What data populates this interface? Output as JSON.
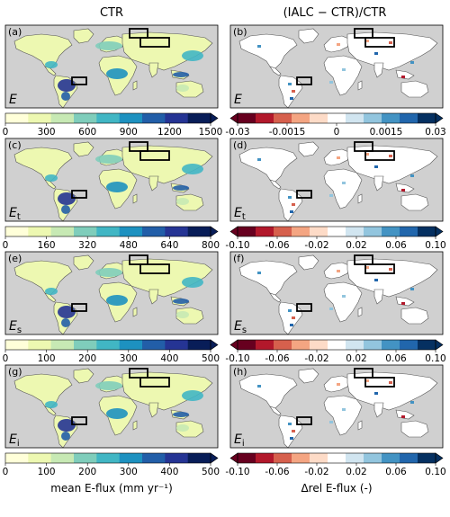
{
  "column_titles": {
    "left": "CTR",
    "right": "(IALC − CTR)/CTR"
  },
  "colors": {
    "ocean": "#d0d0d0",
    "box_stroke": "#000000",
    "mean_colormap": [
      "#ffffd9",
      "#edf8b1",
      "#c7e9b4",
      "#7fcdbb",
      "#41b6c4",
      "#1d91c0",
      "#225ea8",
      "#253494",
      "#081d58"
    ],
    "diff_colormap": [
      "#67001f",
      "#b2182b",
      "#d6604d",
      "#f4a582",
      "#fddbc7",
      "#ffffff",
      "#d1e5f0",
      "#92c5de",
      "#4393c3",
      "#2166ac",
      "#053061"
    ]
  },
  "chart_data": [
    {
      "type": "heatmap",
      "panel": "(a)",
      "variable": "E",
      "subscript": "",
      "colorbar": {
        "ticks": [
          "0",
          "300",
          "600",
          "900",
          "1200",
          "1500"
        ],
        "range": [
          0,
          1500
        ],
        "extend": "max",
        "colormap": "YlGnBu"
      }
    },
    {
      "type": "heatmap",
      "panel": "(b)",
      "variable": "E",
      "subscript": "",
      "colorbar": {
        "ticks": [
          "-0.03",
          "-0.0015",
          "0",
          "0.0015",
          "0.03"
        ],
        "range": [
          -0.03,
          0.03
        ],
        "extend": "both",
        "colormap": "RdBu"
      }
    },
    {
      "type": "heatmap",
      "panel": "(c)",
      "variable": "E",
      "subscript": "t",
      "colorbar": {
        "ticks": [
          "0",
          "160",
          "320",
          "480",
          "640",
          "800"
        ],
        "range": [
          0,
          800
        ],
        "extend": "max",
        "colormap": "YlGnBu"
      }
    },
    {
      "type": "heatmap",
      "panel": "(d)",
      "variable": "E",
      "subscript": "t",
      "colorbar": {
        "ticks": [
          "-0.10",
          "-0.06",
          "-0.02",
          "0.02",
          "0.06",
          "0.10"
        ],
        "range": [
          -0.1,
          0.1
        ],
        "extend": "both",
        "colormap": "RdBu"
      }
    },
    {
      "type": "heatmap",
      "panel": "(e)",
      "variable": "E",
      "subscript": "s",
      "colorbar": {
        "ticks": [
          "0",
          "100",
          "200",
          "300",
          "400",
          "500"
        ],
        "range": [
          0,
          500
        ],
        "extend": "max",
        "colormap": "YlGnBu"
      }
    },
    {
      "type": "heatmap",
      "panel": "(f)",
      "variable": "E",
      "subscript": "s",
      "colorbar": {
        "ticks": [
          "-0.10",
          "-0.06",
          "-0.02",
          "0.02",
          "0.06",
          "0.10"
        ],
        "range": [
          -0.1,
          0.1
        ],
        "extend": "both",
        "colormap": "RdBu"
      }
    },
    {
      "type": "heatmap",
      "panel": "(g)",
      "variable": "E",
      "subscript": "i",
      "colorbar": {
        "ticks": [
          "0",
          "100",
          "200",
          "300",
          "400",
          "500"
        ],
        "range": [
          0,
          500
        ],
        "extend": "max",
        "colormap": "YlGnBu",
        "label": "mean E-flux (mm yr⁻¹)"
      }
    },
    {
      "type": "heatmap",
      "panel": "(h)",
      "variable": "E",
      "subscript": "i",
      "colorbar": {
        "ticks": [
          "-0.10",
          "-0.06",
          "-0.02",
          "0.02",
          "0.06",
          "0.10"
        ],
        "range": [
          -0.1,
          0.1
        ],
        "extend": "both",
        "colormap": "RdBu",
        "label": "Δrel E-flux (-)"
      }
    }
  ]
}
